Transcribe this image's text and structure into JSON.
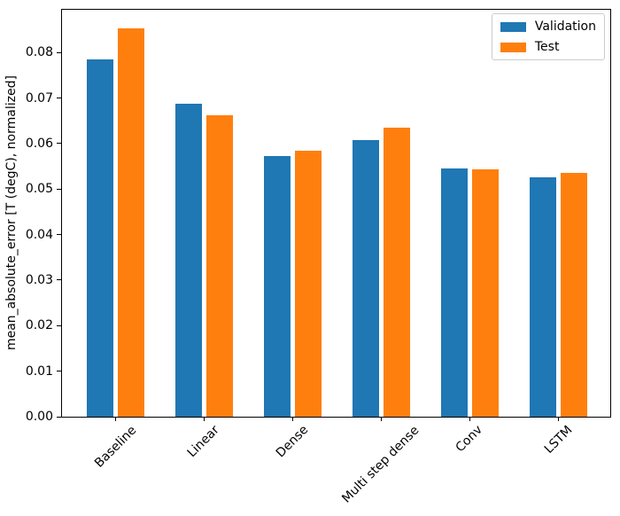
{
  "chart_data": {
    "type": "bar",
    "title": "",
    "xlabel": "",
    "ylabel": "mean_absolute_error [T (degC), normalized]",
    "categories": [
      "Baseline",
      "Linear",
      "Dense",
      "Multi step dense",
      "Conv",
      "LSTM"
    ],
    "series": [
      {
        "name": "Validation",
        "color": "#1f77b4",
        "values": [
          0.0785,
          0.0687,
          0.0573,
          0.0608,
          0.0545,
          0.0526
        ]
      },
      {
        "name": "Test",
        "color": "#ff7f0e",
        "values": [
          0.0853,
          0.0663,
          0.0584,
          0.0635,
          0.0544,
          0.0535
        ]
      }
    ],
    "ylim": [
      0,
      0.0894
    ],
    "yticks": [
      0,
      0.01,
      0.02,
      0.03,
      0.04,
      0.05,
      0.06,
      0.07,
      0.08
    ],
    "ytick_labels": [
      "0.00",
      "0.01",
      "0.02",
      "0.03",
      "0.04",
      "0.05",
      "0.06",
      "0.07",
      "0.08"
    ],
    "x_tick_rotation_deg": 45,
    "grid": false,
    "legend": {
      "position": "upper right",
      "items": [
        "Validation",
        "Test"
      ]
    }
  }
}
